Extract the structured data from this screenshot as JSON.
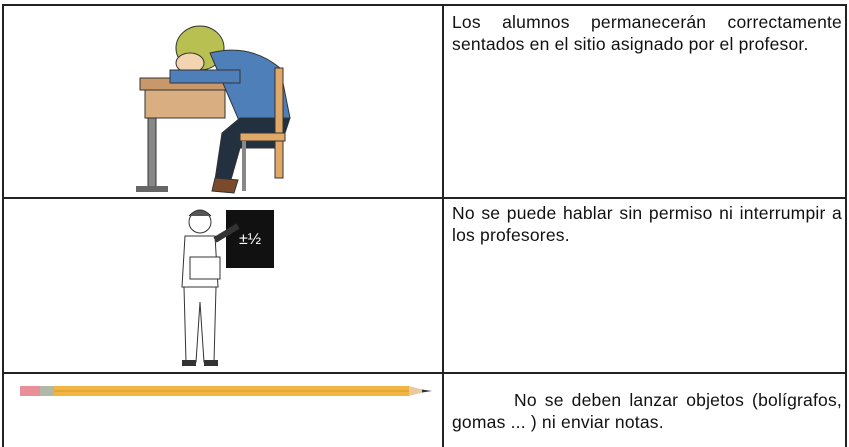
{
  "table": {
    "rows": [
      {
        "text": "Los alumnos permanecerán correctamente sentados en el sitio asignado por el profesor."
      },
      {
        "text": "No se puede hablar sin permiso ni interrumpir a los profesores."
      },
      {
        "text": "No se deben lanzar objetos (bolígrafos, gomas ... ) ni enviar notas."
      }
    ]
  }
}
